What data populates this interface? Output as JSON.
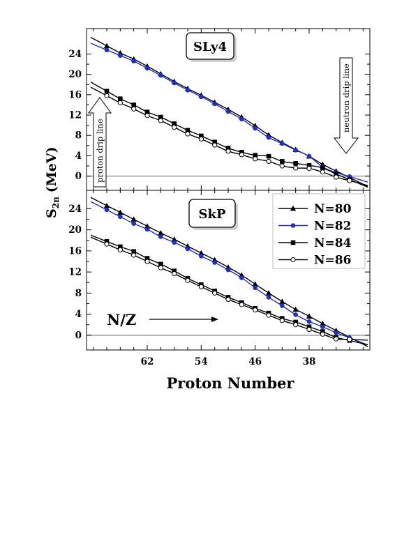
{
  "chart_data": {
    "type": "line",
    "ylabel": "S",
    "ylabel_sub": "2n",
    "ylabel_unit": "(MeV)",
    "xlabel": "Proton Number",
    "x_reversed": true,
    "xlim": [
      29,
      71
    ],
    "x_ticks": [
      62,
      54,
      46,
      38
    ],
    "x_minor_ticks": [
      70,
      68,
      66,
      64,
      60,
      58,
      56,
      52,
      50,
      48,
      44,
      42,
      40,
      36,
      34,
      32,
      30
    ],
    "x": [
      68,
      66,
      64,
      62,
      60,
      58,
      56,
      54,
      52,
      50,
      48,
      46,
      44,
      42,
      40,
      38,
      36,
      34,
      32
    ],
    "legend": {
      "placement": "top-right",
      "entries": [
        {
          "label": "N=80",
          "color": "#000000",
          "marker": "triangle"
        },
        {
          "label": "N=82",
          "color": "#1f2fbf",
          "marker": "circle-filled"
        },
        {
          "label": "N=84",
          "color": "#000000",
          "marker": "square"
        },
        {
          "label": "N=86",
          "color": "#000000",
          "marker": "circle-open"
        }
      ]
    },
    "panels": [
      {
        "label": "SLy4",
        "ylim": [
          -2.8,
          29
        ],
        "y_ticks": [
          0,
          4,
          8,
          12,
          16,
          20,
          24
        ],
        "zero_line": true,
        "annotations": {
          "proton_drip": "proton drip line",
          "neutron_drip": "neutron drip line"
        },
        "series": [
          {
            "name": "N=80",
            "values": [
              25.6,
              24.2,
              23.0,
              21.6,
              20.1,
              18.6,
              17.2,
              15.9,
              14.5,
              13.1,
              11.6,
              9.9,
              8.1,
              6.6,
              5.2,
              3.9,
              2.3,
              1.0,
              -0.3
            ]
          },
          {
            "name": "N=82",
            "values": [
              24.8,
              23.7,
              22.6,
              21.2,
              19.8,
              18.3,
              16.9,
              15.6,
              14.2,
              12.7,
              11.2,
              9.4,
              7.6,
              6.4,
              5.1,
              3.9,
              1.8,
              0.7,
              -0.1
            ]
          },
          {
            "name": "N=84",
            "values": [
              16.7,
              15.2,
              14.0,
              12.6,
              11.6,
              10.3,
              9.0,
              7.9,
              6.7,
              5.5,
              4.7,
              4.1,
              3.9,
              2.9,
              2.5,
              2.1,
              1.6,
              0.4,
              -0.7
            ]
          },
          {
            "name": "N=86",
            "values": [
              15.8,
              14.4,
              13.2,
              11.9,
              10.9,
              9.6,
              8.3,
              7.3,
              6.1,
              4.9,
              4.2,
              3.4,
              2.9,
              2.0,
              1.6,
              1.5,
              0.8,
              -0.2,
              -0.9
            ]
          }
        ]
      },
      {
        "label": "SkP",
        "ylim": [
          -2.8,
          27.5
        ],
        "y_ticks": [
          0,
          4,
          8,
          12,
          16,
          20,
          24
        ],
        "zero_line": true,
        "annotations": {
          "nz_label": "N/Z"
        },
        "series": [
          {
            "name": "N=80",
            "values": [
              24.6,
              23.3,
              22.0,
              20.7,
              19.4,
              18.2,
              16.9,
              15.6,
              14.3,
              12.9,
              11.4,
              9.7,
              8.0,
              6.4,
              4.9,
              3.6,
              2.2,
              0.9,
              -0.4
            ]
          },
          {
            "name": "N=82",
            "values": [
              23.8,
              22.5,
              21.2,
              20.1,
              18.7,
              17.6,
              16.4,
              15.0,
              13.8,
              12.4,
              10.9,
              9.0,
              7.2,
              5.6,
              3.9,
              2.6,
              1.6,
              0.5,
              -0.5
            ]
          },
          {
            "name": "N=84",
            "values": [
              17.8,
              16.8,
              15.9,
              14.6,
              13.5,
              12.2,
              10.8,
              9.6,
              8.4,
              7.2,
              6.2,
              5.1,
              4.2,
              3.2,
              2.5,
              1.6,
              0.7,
              -0.4,
              -1.0
            ]
          },
          {
            "name": "N=86",
            "values": [
              17.3,
              16.2,
              15.2,
              14.0,
              12.8,
              11.7,
              10.4,
              9.2,
              8.0,
              6.8,
              5.8,
              4.8,
              3.8,
              2.8,
              2.0,
              1.1,
              0.2,
              -0.7,
              -0.8
            ]
          }
        ]
      }
    ]
  }
}
